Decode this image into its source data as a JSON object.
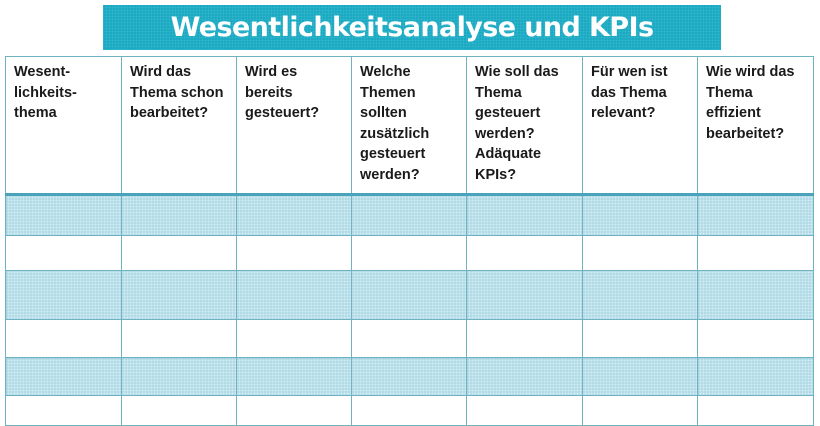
{
  "title": "Wesentlichkeitsanalyse und KPIs",
  "colors": {
    "title_bar": "#1aaac3",
    "title_text": "#ffffff",
    "grid_line": "#6fb3c3",
    "header_separator": "#4aa3ba",
    "shaded_row": "#d3edf4"
  },
  "table": {
    "columns": [
      {
        "label": "Wesent-\nlichkeits-\nthema"
      },
      {
        "label": "Wird das\nThema schon\nbearbeitet?"
      },
      {
        "label": "Wird es\nbereits\ngesteuert?"
      },
      {
        "label": "Welche\nThemen\nsollten\nzusätzlich\ngesteuert\nwerden?"
      },
      {
        "label": "Wie soll das\nThema\ngesteuert\nwerden?\nAdäquate\nKPIs?"
      },
      {
        "label": "Für wen ist\ndas Thema\nrelevant?"
      },
      {
        "label": "Wie wird das\nThema\neffizient\nbearbeitet?"
      }
    ],
    "rows": [
      {
        "style": "shaded",
        "cells": [
          "",
          "",
          "",
          "",
          "",
          "",
          ""
        ]
      },
      {
        "style": "plain",
        "cells": [
          "",
          "",
          "",
          "",
          "",
          "",
          ""
        ]
      },
      {
        "style": "shaded",
        "cells": [
          "",
          "",
          "",
          "",
          "",
          "",
          ""
        ]
      },
      {
        "style": "plain",
        "cells": [
          "",
          "",
          "",
          "",
          "",
          "",
          ""
        ]
      },
      {
        "style": "shaded",
        "cells": [
          "",
          "",
          "",
          "",
          "",
          "",
          ""
        ]
      },
      {
        "style": "plain",
        "cells": [
          "",
          "",
          "",
          "",
          "",
          "",
          ""
        ]
      }
    ]
  }
}
